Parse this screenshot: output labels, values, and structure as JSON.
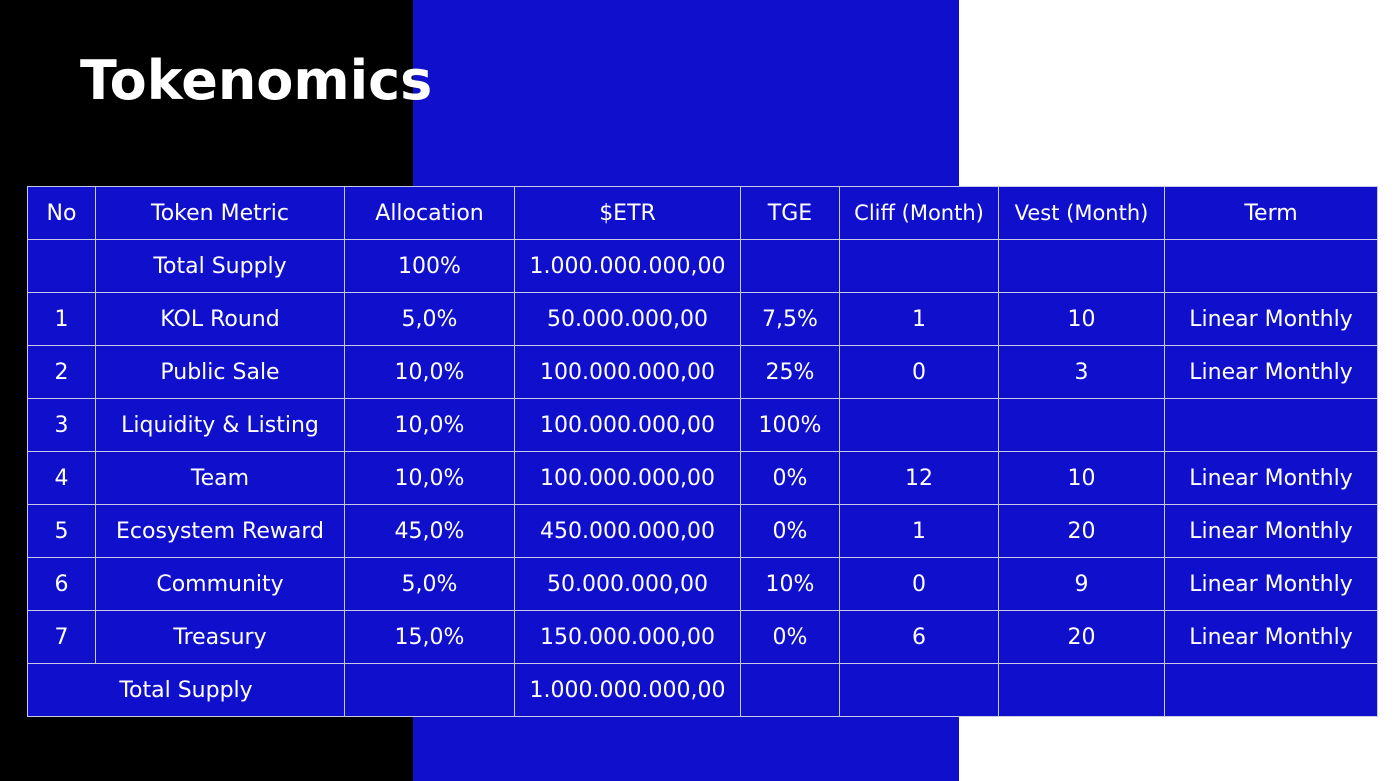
{
  "slide": {
    "title": "Tokenomics",
    "colors": {
      "black_panel": "#000000",
      "blue_panel": "#1010cc",
      "white_panel": "#ffffff",
      "text": "#ffffff",
      "grid_line": "#c8c8e8"
    }
  },
  "table": {
    "headers": {
      "no": "No",
      "metric": "Token Metric",
      "allocation": "Allocation",
      "etr": "$ETR",
      "tge": "TGE",
      "cliff": "Cliff (Month)",
      "vest": "Vest (Month)",
      "term": "Term"
    },
    "total_row": {
      "metric": "Total Supply",
      "allocation": "100%",
      "etr": "1.000.000.000,00"
    },
    "rows": [
      {
        "no": "1",
        "metric": "KOL Round",
        "allocation": "5,0%",
        "etr": "50.000.000,00",
        "tge": "7,5%",
        "cliff": "1",
        "vest": "10",
        "term": "Linear Monthly"
      },
      {
        "no": "2",
        "metric": "Public Sale",
        "allocation": "10,0%",
        "etr": "100.000.000,00",
        "tge": "25%",
        "cliff": "0",
        "vest": "3",
        "term": "Linear Monthly"
      },
      {
        "no": "3",
        "metric": "Liquidity & Listing",
        "allocation": "10,0%",
        "etr": "100.000.000,00",
        "tge": "100%",
        "cliff": "",
        "vest": "",
        "term": ""
      },
      {
        "no": "4",
        "metric": "Team",
        "allocation": "10,0%",
        "etr": "100.000.000,00",
        "tge": "0%",
        "cliff": "12",
        "vest": "10",
        "term": "Linear Monthly"
      },
      {
        "no": "5",
        "metric": "Ecosystem Reward",
        "allocation": "45,0%",
        "etr": "450.000.000,00",
        "tge": "0%",
        "cliff": "1",
        "vest": "20",
        "term": "Linear Monthly"
      },
      {
        "no": "6",
        "metric": "Community",
        "allocation": "5,0%",
        "etr": "50.000.000,00",
        "tge": "10%",
        "cliff": "0",
        "vest": "9",
        "term": "Linear Monthly"
      },
      {
        "no": "7",
        "metric": "Treasury",
        "allocation": "15,0%",
        "etr": "150.000.000,00",
        "tge": "0%",
        "cliff": "6",
        "vest": "20",
        "term": "Linear Monthly"
      }
    ],
    "footer_row": {
      "label": "Total Supply",
      "etr": "1.000.000.000,00"
    }
  }
}
